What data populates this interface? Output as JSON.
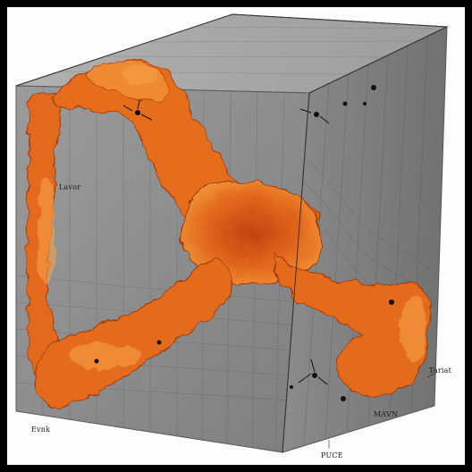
{
  "image": {
    "subject": "block",
    "labels": [
      "Lavor",
      "Evnk",
      "Tariat",
      "MAVN",
      "PUCE"
    ],
    "colors": {
      "frame": "#000000",
      "background": "#ffffff",
      "face_front": "#8f8f8f",
      "face_top": "#a7a7a7",
      "face_right": "#7c7c7c",
      "vein_dark": "#b8420c",
      "vein_mid": "#e0661a",
      "vein_light": "#f39a3b"
    }
  }
}
